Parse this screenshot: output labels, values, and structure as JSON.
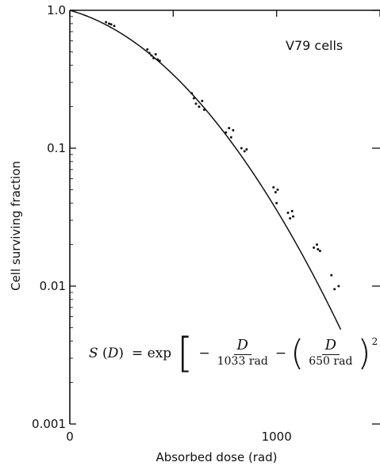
{
  "chart_data": {
    "type": "scatter",
    "title": "",
    "xlabel": "Absorbed dose (rad)",
    "ylabel": "Cell surviving fraction",
    "xscale": "linear",
    "yscale": "log",
    "xlim": [
      0,
      1500
    ],
    "ylim": [
      0.001,
      1.0
    ],
    "x_ticks": [
      0,
      500,
      1000,
      1500
    ],
    "x_tick_labels": [
      "0",
      "",
      "1000",
      ""
    ],
    "y_ticks": [
      0.001,
      0.01,
      0.1,
      1.0
    ],
    "y_tick_labels": [
      "0.001",
      "0.01",
      "0.1",
      "1.0"
    ],
    "grid": false,
    "annotation": "V79 cells",
    "fit_model": {
      "alpha_dose": 1033,
      "beta_dose": 650,
      "x_range": [
        0,
        1310
      ]
    },
    "formula": {
      "lhs": "S",
      "lhs_arg": "D",
      "equals": "= exp",
      "minus": "−",
      "frac1_num": "D",
      "frac1_den": "1033 rad",
      "frac2_num": "D",
      "frac2_den": "650 rad",
      "exponent": "2"
    },
    "points": [
      {
        "x": 175,
        "y": 0.82
      },
      {
        "x": 190,
        "y": 0.8
      },
      {
        "x": 200,
        "y": 0.79
      },
      {
        "x": 215,
        "y": 0.77
      },
      {
        "x": 375,
        "y": 0.52
      },
      {
        "x": 385,
        "y": 0.49
      },
      {
        "x": 395,
        "y": 0.47
      },
      {
        "x": 405,
        "y": 0.45
      },
      {
        "x": 415,
        "y": 0.48
      },
      {
        "x": 425,
        "y": 0.44
      },
      {
        "x": 435,
        "y": 0.43
      },
      {
        "x": 590,
        "y": 0.25
      },
      {
        "x": 600,
        "y": 0.23
      },
      {
        "x": 610,
        "y": 0.21
      },
      {
        "x": 625,
        "y": 0.2
      },
      {
        "x": 640,
        "y": 0.22
      },
      {
        "x": 650,
        "y": 0.19
      },
      {
        "x": 755,
        "y": 0.13
      },
      {
        "x": 770,
        "y": 0.14
      },
      {
        "x": 780,
        "y": 0.12
      },
      {
        "x": 790,
        "y": 0.135
      },
      {
        "x": 830,
        "y": 0.1
      },
      {
        "x": 845,
        "y": 0.095
      },
      {
        "x": 855,
        "y": 0.098
      },
      {
        "x": 985,
        "y": 0.052
      },
      {
        "x": 995,
        "y": 0.048
      },
      {
        "x": 1005,
        "y": 0.05
      },
      {
        "x": 1000,
        "y": 0.04
      },
      {
        "x": 1055,
        "y": 0.034
      },
      {
        "x": 1065,
        "y": 0.031
      },
      {
        "x": 1075,
        "y": 0.035
      },
      {
        "x": 1080,
        "y": 0.032
      },
      {
        "x": 1180,
        "y": 0.019
      },
      {
        "x": 1195,
        "y": 0.02
      },
      {
        "x": 1210,
        "y": 0.018
      },
      {
        "x": 1200,
        "y": 0.0185
      },
      {
        "x": 1265,
        "y": 0.012
      },
      {
        "x": 1280,
        "y": 0.0095
      },
      {
        "x": 1300,
        "y": 0.01
      }
    ]
  }
}
